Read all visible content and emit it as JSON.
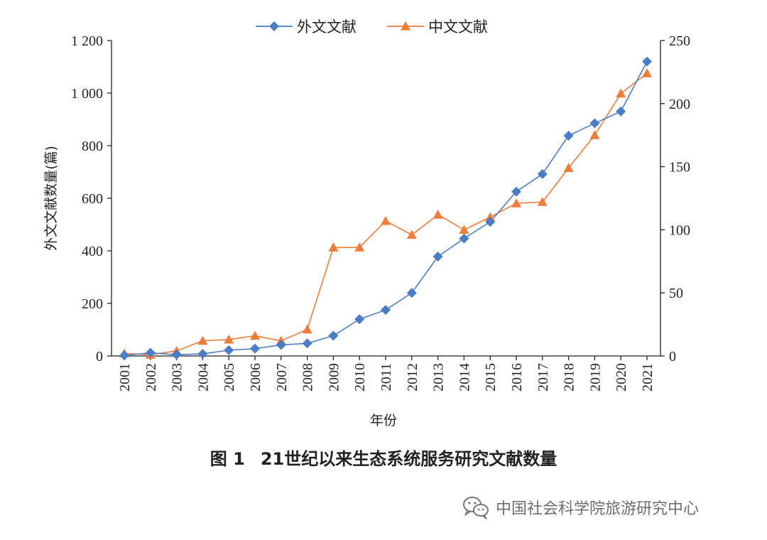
{
  "chart_data": {
    "type": "line",
    "categories": [
      "2001",
      "2002",
      "2003",
      "2004",
      "2005",
      "2006",
      "2007",
      "2008",
      "2009",
      "2010",
      "2011",
      "2012",
      "2013",
      "2014",
      "2015",
      "2016",
      "2017",
      "2018",
      "2019",
      "2020",
      "2021"
    ],
    "series": [
      {
        "name": "外文文献",
        "axis": "left",
        "marker": "diamond",
        "color": "#4a7ec4",
        "values": [
          2,
          12,
          5,
          8,
          22,
          28,
          42,
          48,
          77,
          140,
          175,
          240,
          378,
          447,
          510,
          625,
          692,
          838,
          885,
          930,
          1120
        ]
      },
      {
        "name": "中文文献",
        "axis": "right",
        "marker": "triangle",
        "color": "#f07c3a",
        "values": [
          2,
          1,
          4,
          12,
          13,
          16,
          12,
          21,
          86,
          86,
          107,
          96,
          112,
          100,
          110,
          121,
          122,
          149,
          175,
          208,
          224
        ]
      }
    ],
    "ylabel": "外文文献数量(篇)",
    "xlabel": "年份",
    "ylim_left": [
      0,
      1200
    ],
    "yticks_left": [
      "0",
      "200",
      "400",
      "600",
      "800",
      "1 000",
      "1 200"
    ],
    "ylim_right": [
      0,
      250
    ],
    "yticks_right": [
      "0",
      "50",
      "100",
      "150",
      "200",
      "250"
    ],
    "legend_position": "top-center",
    "grid": false
  },
  "caption": {
    "number": "图 1",
    "text": "21世纪以来生态系统服务研究文献数量"
  },
  "watermark": {
    "icon": "wechat-icon",
    "text": "中国社会科学院旅游研究中心"
  }
}
